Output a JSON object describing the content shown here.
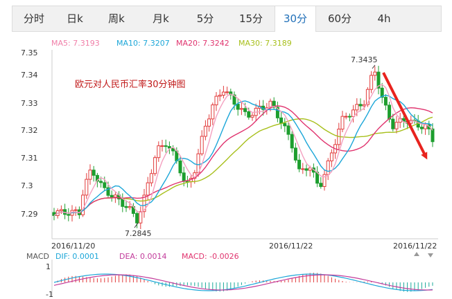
{
  "tabs": [
    {
      "label": "分时",
      "active": false
    },
    {
      "label": "日k",
      "active": false
    },
    {
      "label": "周k",
      "active": false
    },
    {
      "label": "月k",
      "active": false
    },
    {
      "label": "5分",
      "active": false
    },
    {
      "label": "15分",
      "active": false
    },
    {
      "label": "30分",
      "active": true
    },
    {
      "label": "60分",
      "active": false
    },
    {
      "label": "4h",
      "active": false
    }
  ],
  "ma_legend": [
    {
      "text": "MA5: 7.3193",
      "color": "#f07ea8"
    },
    {
      "text": "MA10: 7.3207",
      "color": "#1ba6d8"
    },
    {
      "text": "MA20: 7.3242",
      "color": "#e0336e"
    },
    {
      "text": "MA30: 7.3189",
      "color": "#a7bf1a"
    }
  ],
  "annotation_title": "欧元对人民币汇率30分钟图",
  "macd_legend": [
    {
      "text": "MACD",
      "color": "#555555"
    },
    {
      "text": "DIF: 0.0001",
      "color": "#1ba6d8"
    },
    {
      "text": "DEA: 0.0014",
      "color": "#c23a9a"
    },
    {
      "text": "MACD: -0.0026",
      "color": "#e0336e"
    }
  ],
  "colors": {
    "up": "#e23b3b",
    "down": "#1d9e2e",
    "arrow": "#e8231e",
    "axis": "#cccccc"
  },
  "chart_data": {
    "type": "candlestick",
    "y_ticks": [
      "7.35",
      "7.34",
      "7.33",
      "7.32",
      "7.31",
      "7.3",
      "7.29"
    ],
    "ylim": [
      7.2875,
      7.3525
    ],
    "x_ticks": [
      "2016/11/20",
      "2016/11/22",
      "2016/11/22"
    ],
    "high_label": "7.3435",
    "low_label": "7.2845",
    "macd_ticks": [
      "1",
      "-1"
    ]
  }
}
